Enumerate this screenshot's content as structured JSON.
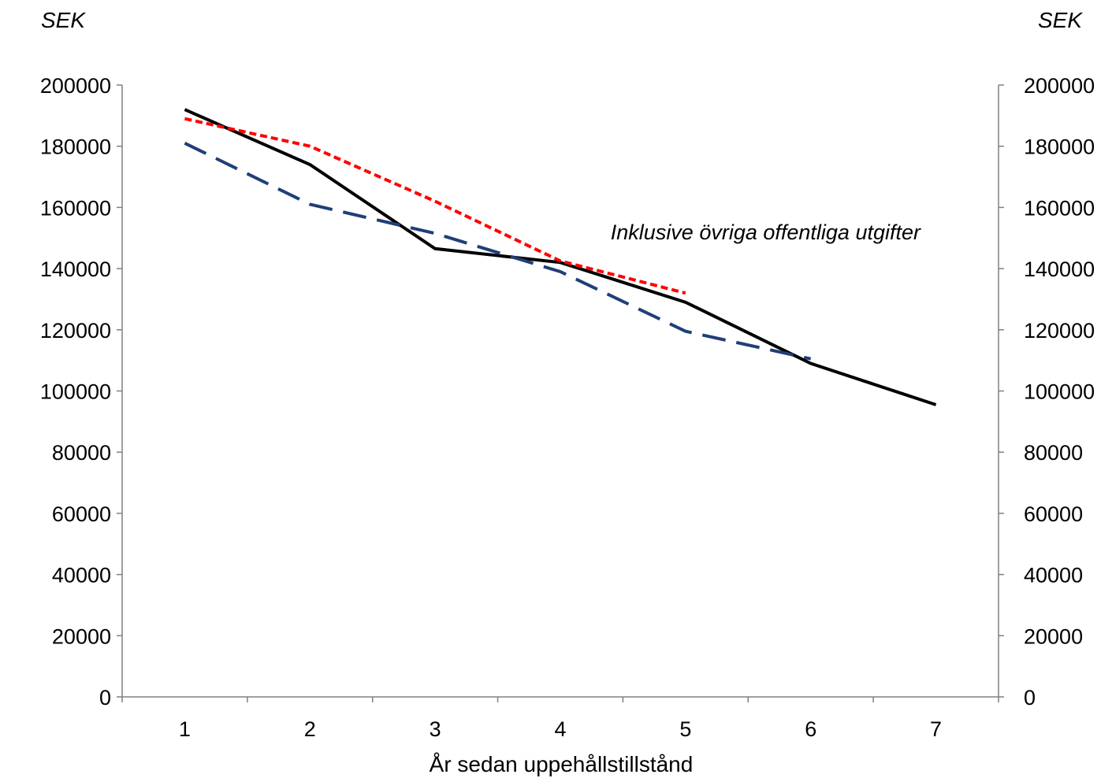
{
  "chart_data": {
    "type": "line",
    "title": "",
    "ylabel_left": "SEK",
    "ylabel_right": "SEK",
    "xlabel": "År sedan uppehållstillstånd",
    "x": [
      1,
      2,
      3,
      4,
      5,
      6,
      7
    ],
    "ylim": [
      0,
      200000
    ],
    "yticks": [
      0,
      20000,
      40000,
      60000,
      80000,
      100000,
      120000,
      140000,
      160000,
      180000,
      200000
    ],
    "grid": false,
    "annotation": "Inklusive övriga offentliga utgifter",
    "series": [
      {
        "color": "#000000",
        "dash": "solid",
        "values": [
          192000,
          174000,
          146500,
          142000,
          129000,
          109000,
          95500
        ]
      },
      {
        "color": "#ff0000",
        "dash": "dotted",
        "values": [
          189000,
          180000,
          162000,
          142500,
          132000,
          null,
          null
        ]
      },
      {
        "color": "#1f3f78",
        "dash": "dashed",
        "values": [
          181000,
          161000,
          151500,
          139000,
          119500,
          110500,
          null
        ]
      }
    ]
  }
}
